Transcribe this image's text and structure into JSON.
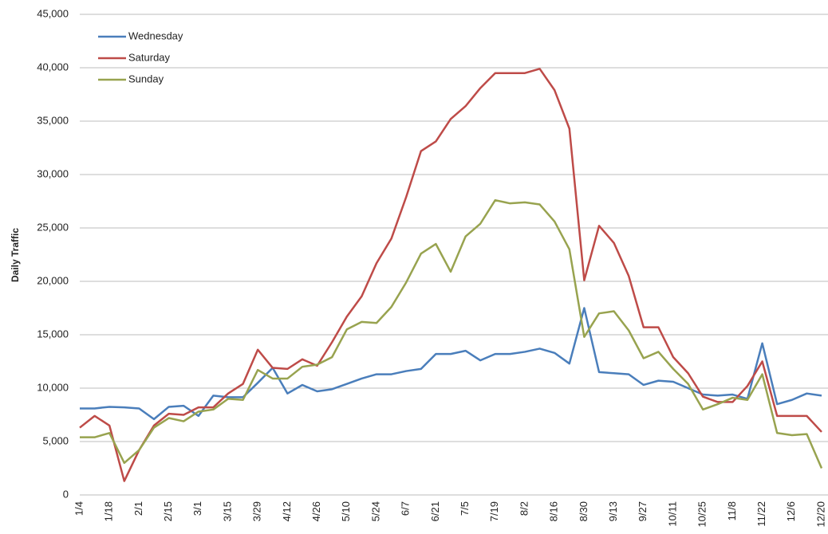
{
  "chart_data": {
    "type": "line",
    "y_label": "Daily Traffic",
    "categories": [
      "1/4",
      null,
      "1/18",
      null,
      "2/1",
      null,
      "2/15",
      null,
      "3/1",
      null,
      "3/15",
      null,
      "3/29",
      null,
      "4/12",
      null,
      "4/26",
      null,
      "5/10",
      null,
      "5/24",
      null,
      "6/7",
      null,
      "6/21",
      null,
      "7/5",
      null,
      "7/19",
      null,
      "8/2",
      null,
      "8/16",
      null,
      "8/30",
      null,
      "9/13",
      null,
      "9/27",
      null,
      "10/11",
      null,
      "10/25",
      null,
      "11/8",
      null,
      "11/22",
      null,
      "12/6",
      null,
      "12/20"
    ],
    "series": [
      {
        "name": "Wednesday",
        "color": "#4a7ebb",
        "values": [
          8100,
          8100,
          8250,
          8200,
          8100,
          7100,
          8250,
          8350,
          7400,
          9300,
          9150,
          9150,
          10500,
          11900,
          9500,
          10300,
          9700,
          9900,
          10400,
          10900,
          11300,
          11300,
          11600,
          11800,
          13200,
          13200,
          13500,
          12600,
          13200,
          13200,
          13400,
          13700,
          13300,
          12300,
          17500,
          11500,
          11400,
          11300,
          10300,
          10700,
          10600,
          10000,
          9400,
          9300,
          9400,
          9000,
          14200,
          8500,
          8900,
          9500,
          9300
        ]
      },
      {
        "name": "Saturday",
        "color": "#be4b48",
        "values": [
          6300,
          7400,
          6500,
          1300,
          4200,
          6500,
          7600,
          7500,
          8200,
          8200,
          9500,
          10400,
          13600,
          11900,
          11800,
          12700,
          12100,
          14300,
          16700,
          18600,
          21700,
          24000,
          27900,
          32200,
          33100,
          35200,
          36400,
          38100,
          39500,
          39500,
          39500,
          39900,
          37900,
          34300,
          20100,
          25200,
          23600,
          20500,
          15700,
          15700,
          12900,
          11400,
          9200,
          8700,
          8700,
          10200,
          12500,
          7400,
          7400,
          7400,
          5900
        ]
      },
      {
        "name": "Sunday",
        "color": "#98a34f",
        "values": [
          5400,
          5400,
          5800,
          3000,
          4200,
          6300,
          7200,
          6900,
          7800,
          8000,
          9000,
          8900,
          11700,
          10900,
          10900,
          12000,
          12200,
          12900,
          15500,
          16200,
          16100,
          17600,
          19900,
          22600,
          23500,
          20900,
          24200,
          25400,
          27600,
          27300,
          27400,
          27200,
          25600,
          23000,
          14800,
          17000,
          17200,
          15400,
          12800,
          13400,
          11800,
          10400,
          8000,
          8500,
          9100,
          8900,
          11300,
          5800,
          5600,
          5700,
          2500
        ]
      }
    ],
    "ylim": [
      0,
      45000
    ],
    "yticks": [
      0,
      {
        "value": 5000,
        "label": "5,000"
      },
      {
        "value": 10000,
        "label": "10,000"
      },
      {
        "value": 15000,
        "label": "15,000"
      },
      {
        "value": 20000,
        "label": "20,000"
      },
      {
        "value": 25000,
        "label": "25,000"
      },
      {
        "value": 30000,
        "label": "30,000"
      },
      {
        "value": 35000,
        "label": "35,000"
      },
      {
        "value": 40000,
        "label": "40,000"
      },
      {
        "value": 45000,
        "label": "45,000"
      }
    ],
    "grid": true,
    "legend": "upper left"
  }
}
